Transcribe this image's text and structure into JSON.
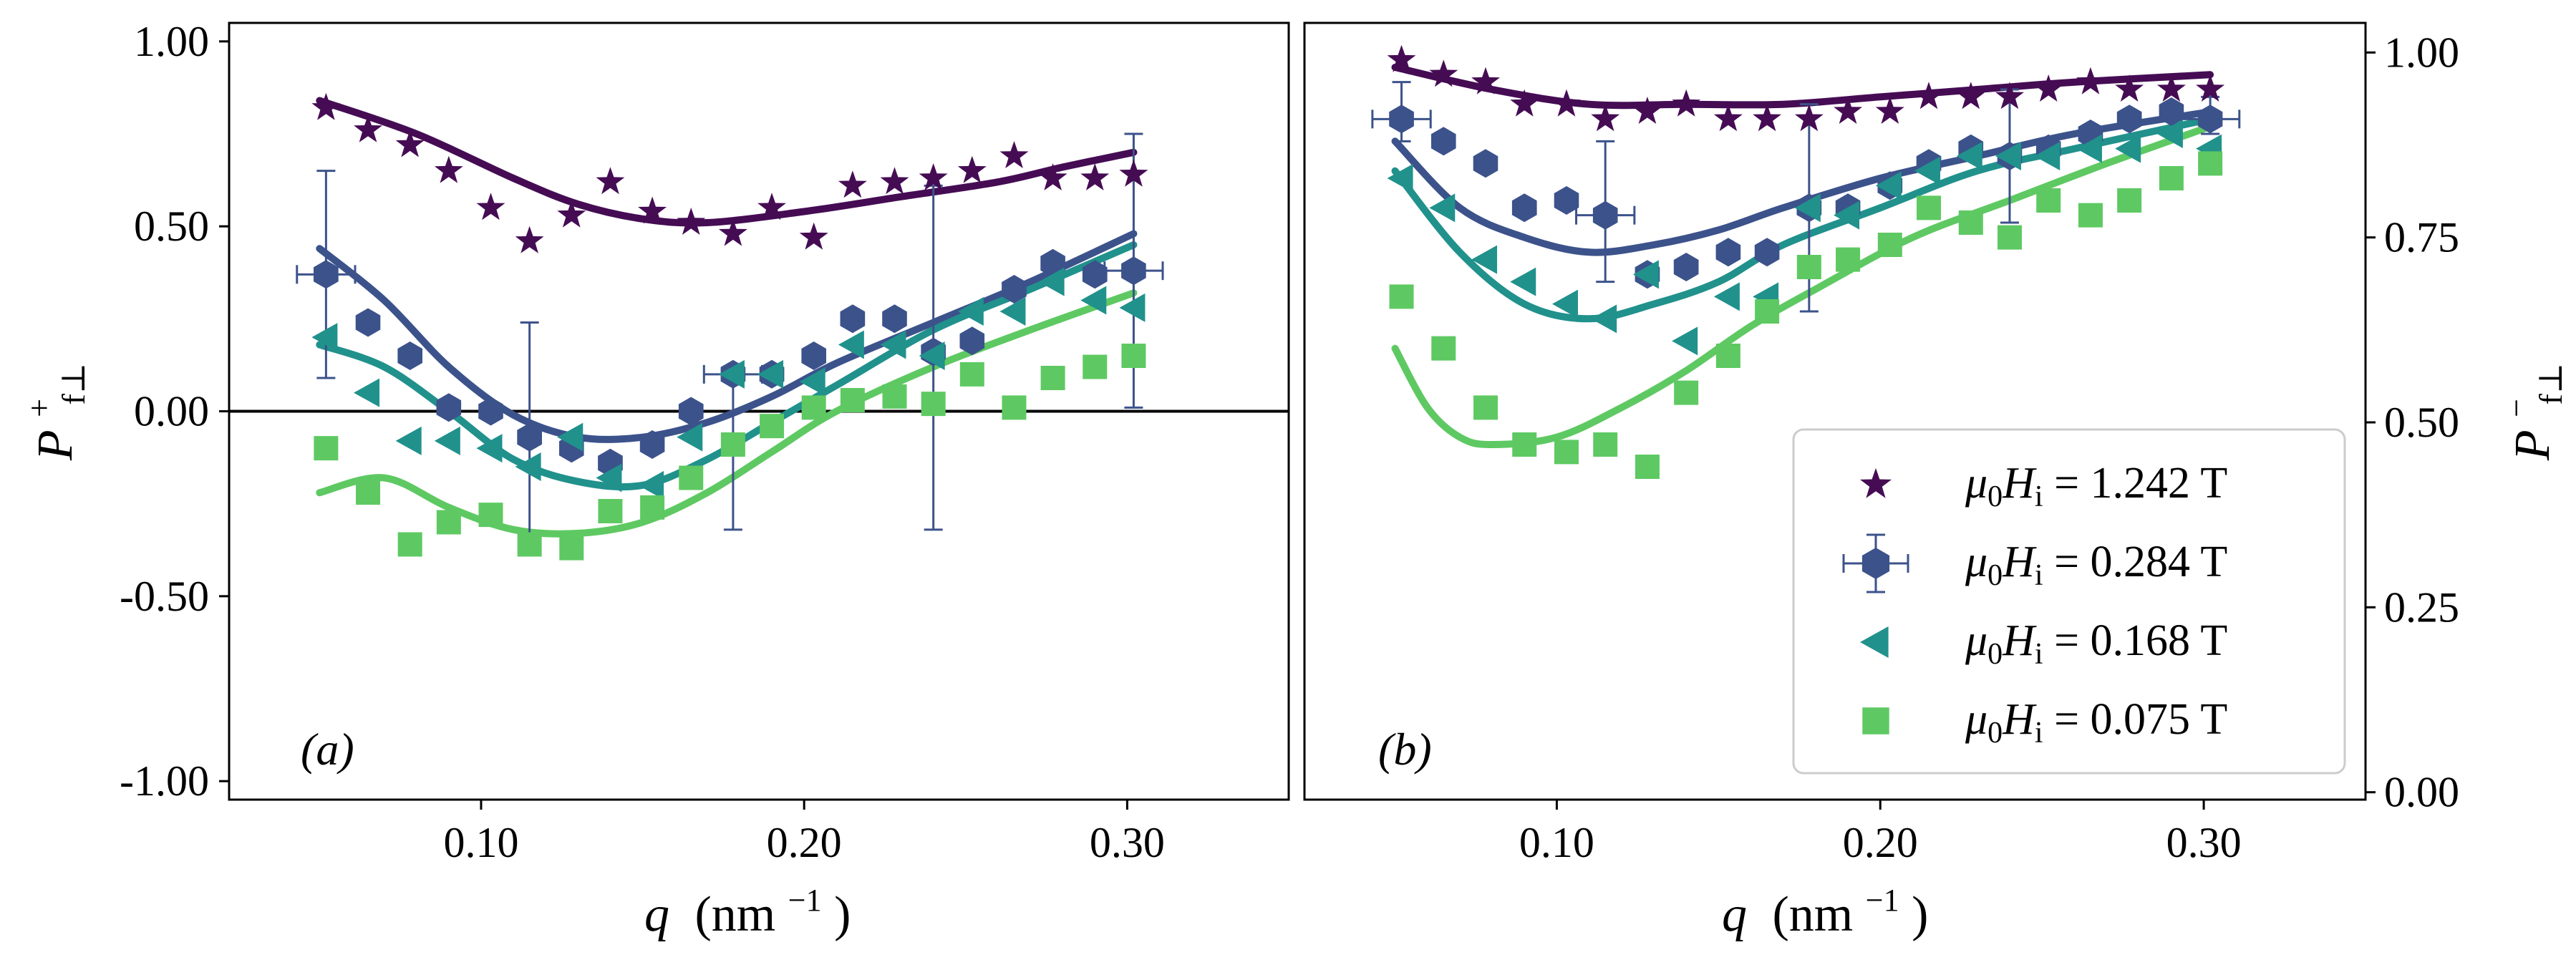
{
  "colors": {
    "s1242": "#450c54",
    "s284": "#3c528b",
    "s168": "#21918c",
    "s075": "#5ec962"
  },
  "chart_data": [
    {
      "type": "scatter",
      "panel_label": "(a)",
      "xlabel": "q (nm⁻¹)",
      "ylabel": "P⁺ f⊥",
      "xlim": [
        0.022,
        0.35
      ],
      "ylim": [
        -1.05,
        1.05
      ],
      "xticks": [
        0.1,
        0.2,
        0.3
      ],
      "xtick_labels": [
        "0.10",
        "0.20",
        "0.30"
      ],
      "yticks": [
        1.0,
        0.5,
        0.0,
        -0.5,
        -1.0
      ],
      "ytick_labels": [
        "1.00",
        "0.50",
        "0.00",
        "-0.50",
        "-1.00"
      ],
      "hline": 0.0,
      "series": [
        {
          "name": "μ0Hi = 1.242 T",
          "marker": "star",
          "color_key": "s1242",
          "x": [
            0.052,
            0.065,
            0.078,
            0.09,
            0.103,
            0.115,
            0.128,
            0.14,
            0.153,
            0.165,
            0.178,
            0.19,
            0.203,
            0.215,
            0.228,
            0.24,
            0.252,
            0.265,
            0.277,
            0.29,
            0.302
          ],
          "y": [
            0.82,
            0.76,
            0.72,
            0.65,
            0.55,
            0.46,
            0.53,
            0.62,
            0.54,
            0.51,
            0.48,
            0.55,
            0.47,
            0.61,
            0.62,
            0.63,
            0.65,
            0.69,
            0.63,
            0.63,
            0.64
          ],
          "fit_x": [
            0.05,
            0.08,
            0.11,
            0.13,
            0.15,
            0.17,
            0.2,
            0.23,
            0.26,
            0.28,
            0.302
          ],
          "fit_y": [
            0.84,
            0.75,
            0.63,
            0.56,
            0.52,
            0.51,
            0.54,
            0.58,
            0.62,
            0.66,
            0.7
          ]
        },
        {
          "name": "μ0Hi = 0.284 T",
          "marker": "hexagon",
          "color_key": "s284",
          "x": [
            0.052,
            0.065,
            0.078,
            0.09,
            0.103,
            0.115,
            0.128,
            0.14,
            0.153,
            0.165,
            0.178,
            0.19,
            0.203,
            0.215,
            0.228,
            0.24,
            0.252,
            0.265,
            0.277,
            0.29,
            0.302
          ],
          "y": [
            0.37,
            0.24,
            0.15,
            0.01,
            0.0,
            -0.07,
            -0.1,
            -0.14,
            -0.09,
            0.0,
            0.1,
            0.1,
            0.15,
            0.25,
            0.25,
            0.16,
            0.19,
            0.33,
            0.4,
            0.37,
            0.38
          ],
          "fit_x": [
            0.05,
            0.07,
            0.09,
            0.11,
            0.13,
            0.15,
            0.17,
            0.19,
            0.21,
            0.24,
            0.27,
            0.302
          ],
          "fit_y": [
            0.44,
            0.3,
            0.12,
            -0.01,
            -0.07,
            -0.07,
            -0.03,
            0.04,
            0.13,
            0.24,
            0.35,
            0.48
          ],
          "errorbars": [
            {
              "x": 0.052,
              "y": 0.37,
              "ylow": 0.09,
              "yhigh": 0.65,
              "xlow": 0.043,
              "xhigh": 0.061
            },
            {
              "x": 0.115,
              "y": -0.07,
              "ylow": -0.39,
              "yhigh": 0.24
            },
            {
              "x": 0.178,
              "y": 0.1,
              "ylow": -0.32,
              "yhigh": 0.1,
              "xlow": 0.169,
              "xhigh": 0.187
            },
            {
              "x": 0.24,
              "y": 0.16,
              "ylow": -0.32,
              "yhigh": 0.61
            },
            {
              "x": 0.302,
              "y": 0.38,
              "ylow": 0.01,
              "yhigh": 0.75,
              "xlow": 0.293,
              "xhigh": 0.311
            }
          ]
        },
        {
          "name": "μ0Hi = 0.168 T",
          "marker": "triangle-left",
          "color_key": "s168",
          "x": [
            0.052,
            0.065,
            0.078,
            0.09,
            0.103,
            0.115,
            0.128,
            0.14,
            0.153,
            0.165,
            0.178,
            0.19,
            0.203,
            0.215,
            0.228,
            0.24,
            0.252,
            0.265,
            0.277,
            0.29,
            0.302
          ],
          "y": [
            0.2,
            0.05,
            -0.08,
            -0.08,
            -0.1,
            -0.15,
            -0.07,
            -0.18,
            -0.2,
            -0.07,
            0.1,
            0.1,
            0.08,
            0.18,
            0.18,
            0.15,
            0.27,
            0.27,
            0.35,
            0.3,
            0.28
          ],
          "fit_x": [
            0.05,
            0.07,
            0.09,
            0.11,
            0.13,
            0.15,
            0.17,
            0.19,
            0.21,
            0.24,
            0.27,
            0.302
          ],
          "fit_y": [
            0.18,
            0.12,
            0.0,
            -0.13,
            -0.19,
            -0.2,
            -0.13,
            -0.03,
            0.07,
            0.22,
            0.33,
            0.45
          ]
        },
        {
          "name": "μ0Hi = 0.075 T",
          "marker": "square",
          "color_key": "s075",
          "x": [
            0.052,
            0.065,
            0.078,
            0.09,
            0.103,
            0.115,
            0.128,
            0.14,
            0.153,
            0.165,
            0.178,
            0.19,
            0.203,
            0.215,
            0.228,
            0.24,
            0.252,
            0.265,
            0.277,
            0.29,
            0.302
          ],
          "y": [
            -0.1,
            -0.22,
            -0.36,
            -0.3,
            -0.28,
            -0.36,
            -0.37,
            -0.27,
            -0.26,
            -0.18,
            -0.09,
            -0.04,
            0.01,
            0.03,
            0.04,
            0.02,
            0.1,
            0.01,
            0.09,
            0.12,
            0.15
          ],
          "fit_x": [
            0.05,
            0.07,
            0.09,
            0.11,
            0.13,
            0.15,
            0.17,
            0.19,
            0.21,
            0.24,
            0.27,
            0.302
          ],
          "fit_y": [
            -0.22,
            -0.18,
            -0.26,
            -0.32,
            -0.33,
            -0.3,
            -0.22,
            -0.11,
            0.0,
            0.12,
            0.22,
            0.32
          ]
        }
      ]
    },
    {
      "type": "scatter",
      "panel_label": "(b)",
      "xlabel": "q (nm⁻¹)",
      "ylabel": "P⁻ f⊥",
      "xlim": [
        0.022,
        0.35
      ],
      "ylim": [
        -0.01,
        1.04
      ],
      "xticks": [
        0.1,
        0.2,
        0.3
      ],
      "xtick_labels": [
        "0.10",
        "0.20",
        "0.30"
      ],
      "yticks": [
        1.0,
        0.75,
        0.5,
        0.25,
        0.0
      ],
      "ytick_labels": [
        "1.00",
        "0.75",
        "0.50",
        "0.25",
        "0.00"
      ],
      "series": [
        {
          "name": "μ0Hi = 1.242 T",
          "marker": "star",
          "color_key": "s1242",
          "x": [
            0.052,
            0.065,
            0.078,
            0.09,
            0.103,
            0.115,
            0.128,
            0.14,
            0.153,
            0.165,
            0.178,
            0.19,
            0.203,
            0.215,
            0.228,
            0.24,
            0.252,
            0.265,
            0.277,
            0.29,
            0.302
          ],
          "y": [
            0.99,
            0.97,
            0.96,
            0.93,
            0.93,
            0.91,
            0.92,
            0.93,
            0.91,
            0.91,
            0.91,
            0.92,
            0.92,
            0.94,
            0.94,
            0.94,
            0.95,
            0.96,
            0.95,
            0.95,
            0.95
          ],
          "fit_x": [
            0.05,
            0.08,
            0.11,
            0.14,
            0.17,
            0.2,
            0.23,
            0.26,
            0.302
          ],
          "fit_y": [
            0.98,
            0.95,
            0.93,
            0.93,
            0.93,
            0.94,
            0.95,
            0.96,
            0.97
          ]
        },
        {
          "name": "μ0Hi = 0.284 T",
          "marker": "hexagon",
          "color_key": "s284",
          "x": [
            0.052,
            0.065,
            0.078,
            0.09,
            0.103,
            0.115,
            0.128,
            0.14,
            0.153,
            0.165,
            0.178,
            0.19,
            0.203,
            0.215,
            0.228,
            0.24,
            0.252,
            0.265,
            0.277,
            0.29,
            0.302
          ],
          "y": [
            0.91,
            0.88,
            0.85,
            0.79,
            0.8,
            0.78,
            0.7,
            0.71,
            0.73,
            0.73,
            0.79,
            0.79,
            0.82,
            0.85,
            0.87,
            0.86,
            0.87,
            0.89,
            0.91,
            0.92,
            0.91
          ],
          "fit_x": [
            0.05,
            0.07,
            0.09,
            0.11,
            0.13,
            0.15,
            0.17,
            0.2,
            0.23,
            0.26,
            0.302
          ],
          "fit_y": [
            0.88,
            0.79,
            0.75,
            0.73,
            0.74,
            0.76,
            0.79,
            0.83,
            0.86,
            0.89,
            0.92
          ],
          "errorbars": [
            {
              "x": 0.052,
              "y": 0.91,
              "ylow": 0.88,
              "yhigh": 0.96,
              "xlow": 0.043,
              "xhigh": 0.061
            },
            {
              "x": 0.115,
              "y": 0.78,
              "ylow": 0.69,
              "yhigh": 0.88,
              "xlow": 0.106,
              "xhigh": 0.124
            },
            {
              "x": 0.178,
              "y": 0.79,
              "ylow": 0.65,
              "yhigh": 0.93
            },
            {
              "x": 0.24,
              "y": 0.86,
              "ylow": 0.77,
              "yhigh": 0.95
            },
            {
              "x": 0.302,
              "y": 0.91,
              "ylow": 0.89,
              "yhigh": 0.94,
              "xlow": 0.293,
              "xhigh": 0.311
            }
          ]
        },
        {
          "name": "μ0Hi = 0.168 T",
          "marker": "triangle-left",
          "color_key": "s168",
          "x": [
            0.052,
            0.065,
            0.078,
            0.09,
            0.103,
            0.115,
            0.128,
            0.14,
            0.153,
            0.165,
            0.178,
            0.19,
            0.203,
            0.215,
            0.228,
            0.24,
            0.252,
            0.265,
            0.277,
            0.29,
            0.302
          ],
          "y": [
            0.83,
            0.79,
            0.72,
            0.69,
            0.66,
            0.64,
            0.7,
            0.61,
            0.67,
            0.67,
            0.79,
            0.78,
            0.82,
            0.84,
            0.86,
            0.86,
            0.86,
            0.87,
            0.87,
            0.89,
            0.87
          ],
          "fit_x": [
            0.05,
            0.07,
            0.09,
            0.11,
            0.13,
            0.15,
            0.17,
            0.2,
            0.23,
            0.26,
            0.302
          ],
          "fit_y": [
            0.84,
            0.73,
            0.66,
            0.64,
            0.66,
            0.69,
            0.74,
            0.79,
            0.84,
            0.87,
            0.91
          ]
        },
        {
          "name": "μ0Hi = 0.075 T",
          "marker": "square",
          "color_key": "s075",
          "x": [
            0.052,
            0.065,
            0.078,
            0.09,
            0.103,
            0.115,
            0.128,
            0.14,
            0.153,
            0.165,
            0.178,
            0.19,
            0.203,
            0.215,
            0.228,
            0.24,
            0.252,
            0.265,
            0.277,
            0.29,
            0.302
          ],
          "y": [
            0.67,
            0.6,
            0.52,
            0.47,
            0.46,
            0.47,
            0.44,
            0.54,
            0.59,
            0.65,
            0.71,
            0.72,
            0.74,
            0.79,
            0.77,
            0.75,
            0.8,
            0.78,
            0.8,
            0.83,
            0.85
          ],
          "fit_x": [
            0.05,
            0.06,
            0.07,
            0.08,
            0.1,
            0.12,
            0.14,
            0.16,
            0.18,
            0.21,
            0.24,
            0.27,
            0.302
          ],
          "fit_y": [
            0.6,
            0.52,
            0.48,
            0.47,
            0.48,
            0.52,
            0.57,
            0.63,
            0.68,
            0.75,
            0.8,
            0.85,
            0.9
          ]
        }
      ]
    }
  ],
  "legend": {
    "placement": "lower-right of panel (b)",
    "entries": [
      {
        "prefix": "μ",
        "sub0": "0",
        "var": "H",
        "subi": "i",
        "value": " = 1.242 T",
        "marker": "star",
        "color_key": "s1242"
      },
      {
        "prefix": "μ",
        "sub0": "0",
        "var": "H",
        "subi": "i",
        "value": " = 0.284 T",
        "marker": "hexagon",
        "color_key": "s284"
      },
      {
        "prefix": "μ",
        "sub0": "0",
        "var": "H",
        "subi": "i",
        "value": " = 0.168 T",
        "marker": "triangle-left",
        "color_key": "s168"
      },
      {
        "prefix": "μ",
        "sub0": "0",
        "var": "H",
        "subi": "i",
        "value": " = 0.075 T",
        "marker": "square",
        "color_key": "s075"
      }
    ]
  },
  "axis_text": {
    "q": "q",
    "unit": "(nm",
    "exp": "−1",
    "close": ")",
    "P": "P",
    "sup_plus": "+",
    "sup_minus": "−",
    "sub": "f⊥"
  }
}
